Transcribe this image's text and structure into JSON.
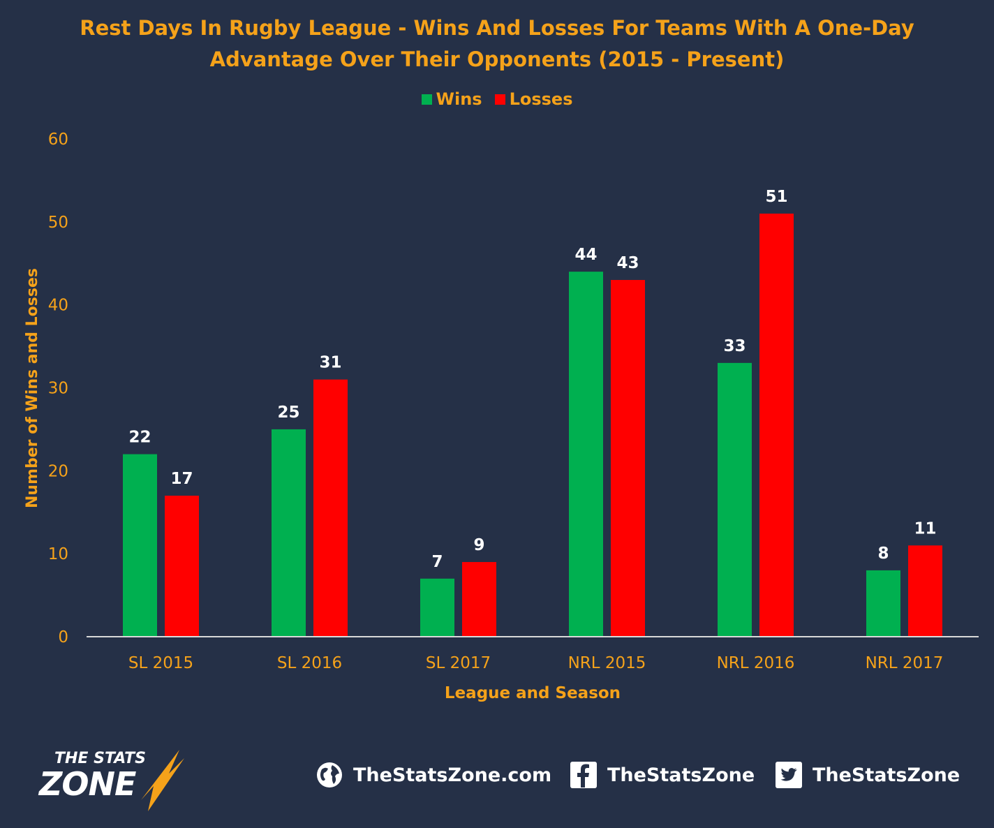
{
  "chart_data": {
    "type": "bar",
    "title_line1": "Rest Days In Rugby League - Wins And Losses For Teams With A One-Day",
    "title_line2": "Advantage Over Their Opponents (2015 - Present)",
    "xlabel": "League and Season",
    "ylabel": "Number of Wins and Losses",
    "categories": [
      "SL 2015",
      "SL 2016",
      "SL 2017",
      "NRL 2015",
      "NRL 2016",
      "NRL 2017"
    ],
    "series": [
      {
        "name": "Wins",
        "color": "#00b050",
        "values": [
          22,
          25,
          7,
          44,
          33,
          8
        ]
      },
      {
        "name": "Losses",
        "color": "#ff0000",
        "values": [
          17,
          31,
          9,
          43,
          51,
          11
        ]
      }
    ],
    "ylim": [
      0,
      60
    ],
    "yticks": [
      0,
      10,
      20,
      30,
      40,
      50,
      60
    ],
    "grid": false,
    "legend_position": "top-center",
    "axis_color": "#f5a21a",
    "label_color": "#ffffff"
  },
  "footer": {
    "logo_top": "THE STATS",
    "logo_bottom": "ZONE",
    "website": "TheStatsZone.com",
    "facebook": "TheStatsZone",
    "twitter": "TheStatsZone",
    "website_icon": "globe-icon",
    "facebook_icon": "facebook-icon",
    "twitter_icon": "twitter-icon"
  }
}
